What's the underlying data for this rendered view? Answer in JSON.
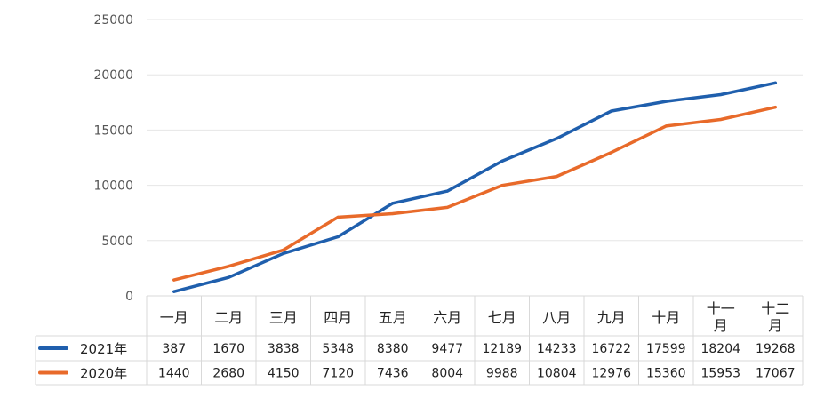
{
  "chart_data": {
    "type": "line",
    "categories": [
      "一月",
      "二月",
      "三月",
      "四月",
      "五月",
      "六月",
      "七月",
      "八月",
      "九月",
      "十月",
      "十一月",
      "十二月"
    ],
    "category_lines": [
      [
        "一月"
      ],
      [
        "二月"
      ],
      [
        "三月"
      ],
      [
        "四月"
      ],
      [
        "五月"
      ],
      [
        "六月"
      ],
      [
        "七月"
      ],
      [
        "八月"
      ],
      [
        "九月"
      ],
      [
        "十月"
      ],
      [
        "十一",
        "月"
      ],
      [
        "十二",
        "月"
      ]
    ],
    "series": [
      {
        "name": "2021年",
        "color": "#1f5fad",
        "values": [
          387,
          1670,
          3838,
          5348,
          8380,
          9477,
          12189,
          14233,
          16722,
          17599,
          18204,
          19268
        ]
      },
      {
        "name": "2020年",
        "color": "#e86a2a",
        "values": [
          1440,
          2680,
          4150,
          7120,
          7436,
          8004,
          9988,
          10804,
          12976,
          15360,
          15953,
          17067
        ]
      }
    ],
    "yticks": [
      0,
      5000,
      10000,
      15000,
      20000,
      25000
    ],
    "ylim": [
      0,
      25000
    ],
    "grid": true,
    "data_table": true
  }
}
